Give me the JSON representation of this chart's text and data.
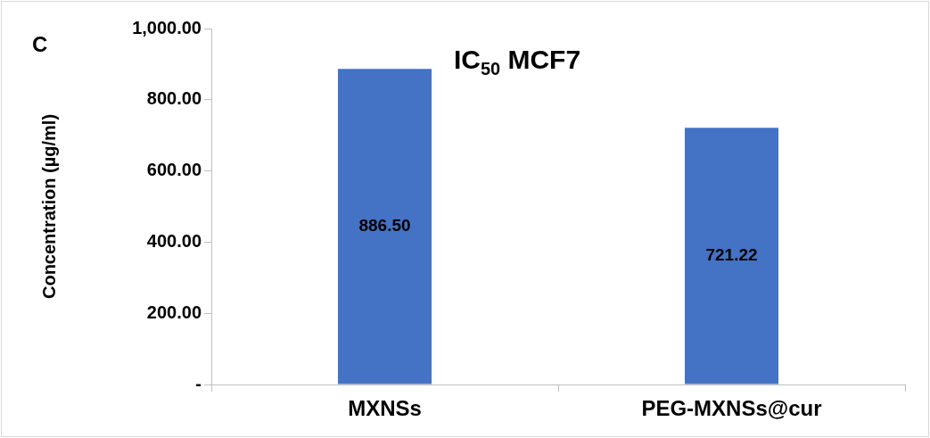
{
  "chart_data": {
    "type": "bar",
    "title": "IC$_{50}$ MCF7",
    "ylabel": "Concentration (µg/ml)",
    "annotations": [
      "C"
    ],
    "categories": [
      "MXNSs",
      "PEG-MXNSs@cur"
    ],
    "values": [
      886.5,
      721.22
    ],
    "color": "#4472c4",
    "value_labels": [
      "886.50",
      "721.22"
    ],
    "ylim": [
      0,
      1000
    ],
    "yticks": [
      {
        "value": 0,
        "label": "-"
      },
      {
        "value": 200,
        "label": "200.00"
      },
      {
        "value": 400,
        "label": "400.00"
      },
      {
        "value": 600,
        "label": "600.00"
      },
      {
        "value": 800,
        "label": "800.00"
      },
      {
        "value": 1000,
        "label": "1,000.00"
      }
    ],
    "grid": false,
    "legend": false
  }
}
